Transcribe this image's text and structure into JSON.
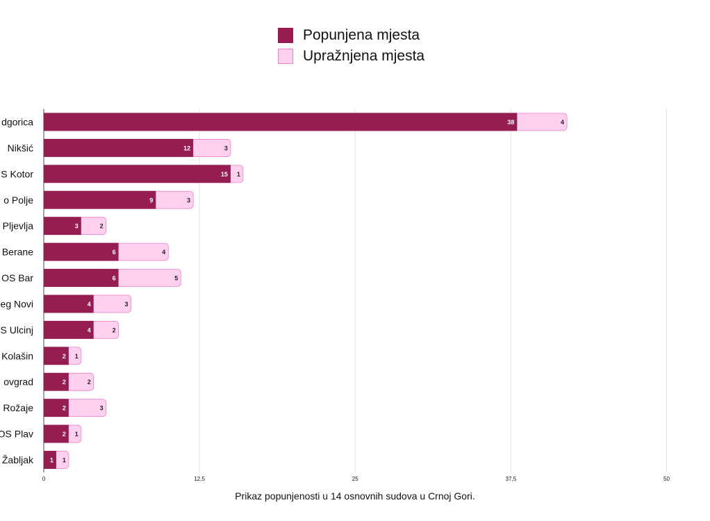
{
  "colors": {
    "filled": "#961d52",
    "vacant": "#ffd1ee",
    "vacant_border": "#f080c4",
    "grid": "#e3e3e3",
    "text": "#111111"
  },
  "legend": [
    {
      "label": "Popunjena mjesta",
      "color": "#961d52"
    },
    {
      "label": "Upražnjena mjesta",
      "color": "#ffd1ee"
    }
  ],
  "caption": "Prikaz popunjenosti u 14 osnovnih sudova u Crnoj Gori.",
  "chart_data": {
    "type": "bar",
    "orientation": "horizontal",
    "stacked": true,
    "categories": [
      "dgorica",
      "Nikšić",
      "S Kotor",
      "o Polje",
      "Pljevlja",
      "Berane",
      "OS Bar",
      "eg Novi",
      "S Ulcinj",
      "Kolašin",
      "ovgrad",
      "Rožaje",
      "OS Plav",
      "Žabljak"
    ],
    "series": [
      {
        "name": "Popunjena mjesta",
        "values": [
          38,
          12,
          15,
          9,
          3,
          6,
          6,
          4,
          4,
          2,
          2,
          2,
          2,
          1
        ]
      },
      {
        "name": "Upražnjena mjesta",
        "values": [
          4,
          3,
          1,
          3,
          2,
          4,
          5,
          3,
          2,
          1,
          2,
          3,
          1,
          1
        ]
      }
    ],
    "xlim": [
      0,
      50
    ],
    "xticks": [
      "0",
      "12,5",
      "25",
      "37,5",
      "50"
    ],
    "grid": true,
    "legend_position": "top-center"
  }
}
